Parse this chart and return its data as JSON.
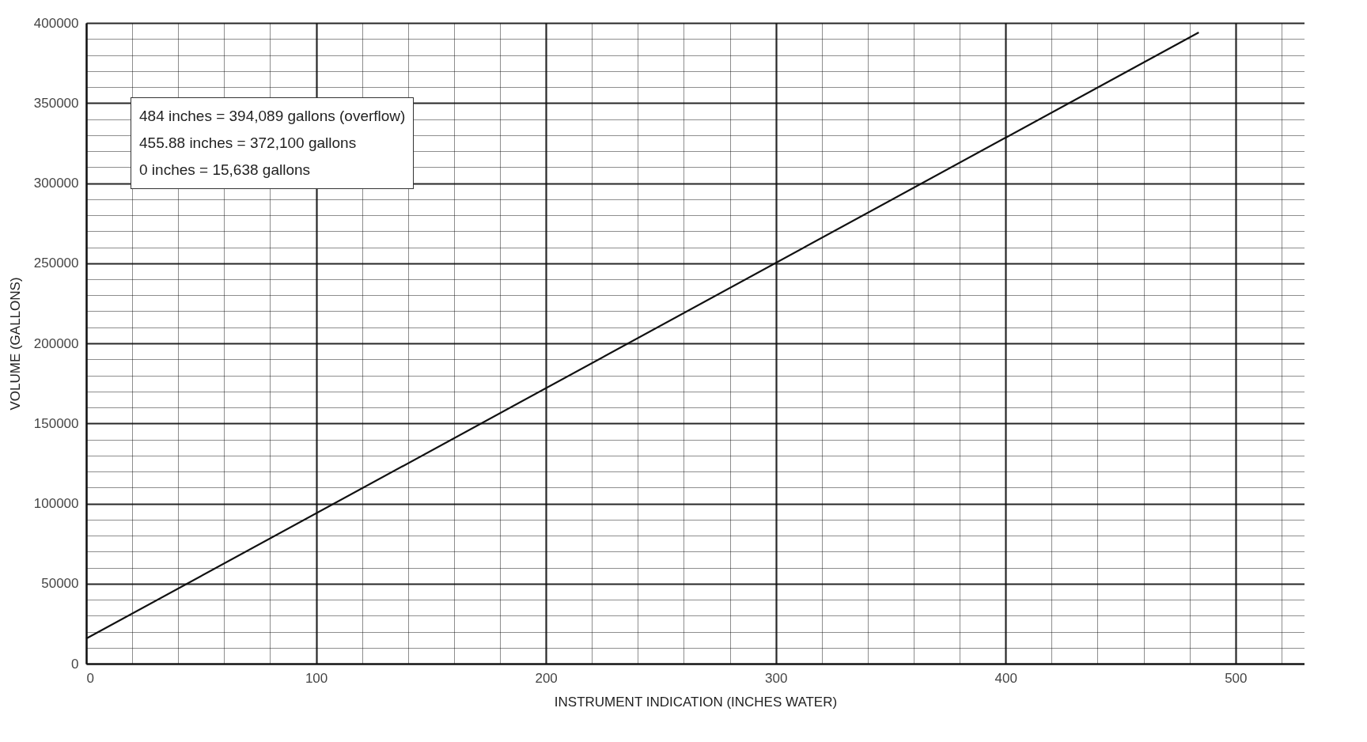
{
  "chart_data": {
    "type": "line",
    "xlabel": "INSTRUMENT INDICATION (INCHES WATER)",
    "ylabel": "VOLUME (GALLONS)",
    "series": [
      {
        "color": "#111111",
        "x": [
          0,
          455.88,
          484
        ],
        "values": [
          15638,
          372100,
          394089
        ]
      }
    ],
    "xlim": [
      0,
      530
    ],
    "ylim": [
      0,
      400000
    ],
    "xticks": [
      0,
      {
        "value": 20,
        "label": null
      },
      {
        "value": 40,
        "label": null
      },
      {
        "value": 60,
        "label": null
      },
      {
        "value": 80,
        "label": null
      },
      100,
      {
        "value": 120,
        "label": null
      },
      {
        "value": 140,
        "label": null
      },
      {
        "value": 160,
        "label": null
      },
      {
        "value": 180,
        "label": null
      },
      200,
      {
        "value": 220,
        "label": null
      },
      {
        "value": 240,
        "label": null
      },
      {
        "value": 260,
        "label": null
      },
      {
        "value": 280,
        "label": null
      },
      300,
      {
        "value": 320,
        "label": null
      },
      {
        "value": 340,
        "label": null
      },
      {
        "value": 360,
        "label": null
      },
      {
        "value": 380,
        "label": null
      },
      400,
      {
        "value": 420,
        "label": null
      },
      {
        "value": 440,
        "label": null
      },
      {
        "value": 460,
        "label": null
      },
      {
        "value": 480,
        "label": null
      },
      500,
      {
        "value": 520,
        "label": null
      }
    ],
    "yticks": [
      0,
      {
        "value": 10000,
        "label": null
      },
      {
        "value": 20000,
        "label": null
      },
      {
        "value": 30000,
        "label": null
      },
      {
        "value": 40000,
        "label": null
      },
      50000,
      {
        "value": 60000,
        "label": null
      },
      {
        "value": 70000,
        "label": null
      },
      {
        "value": 80000,
        "label": null
      },
      {
        "value": 90000,
        "label": null
      },
      100000,
      {
        "value": 110000,
        "label": null
      },
      {
        "value": 120000,
        "label": null
      },
      {
        "value": 130000,
        "label": null
      },
      {
        "value": 140000,
        "label": null
      },
      150000,
      {
        "value": 160000,
        "label": null
      },
      {
        "value": 170000,
        "label": null
      },
      {
        "value": 180000,
        "label": null
      },
      {
        "value": 190000,
        "label": null
      },
      200000,
      {
        "value": 210000,
        "label": null
      },
      {
        "value": 220000,
        "label": null
      },
      {
        "value": 230000,
        "label": null
      },
      {
        "value": 240000,
        "label": null
      },
      250000,
      {
        "value": 260000,
        "label": null
      },
      {
        "value": 270000,
        "label": null
      },
      {
        "value": 280000,
        "label": null
      },
      {
        "value": 290000,
        "label": null
      },
      300000,
      {
        "value": 310000,
        "label": null
      },
      {
        "value": 320000,
        "label": null
      },
      {
        "value": 330000,
        "label": null
      },
      {
        "value": 340000,
        "label": null
      },
      350000,
      {
        "value": 360000,
        "label": null
      },
      {
        "value": 370000,
        "label": null
      },
      {
        "value": 380000,
        "label": null
      },
      {
        "value": 390000,
        "label": null
      },
      400000
    ],
    "grid": true,
    "marker": "none",
    "line_style": "solid",
    "annotations": [
      "484 inches = 394,089 gallons (overflow)",
      "455.88 inches = 372,100 gallons",
      "0 inches = 15,638 gallons"
    ]
  }
}
